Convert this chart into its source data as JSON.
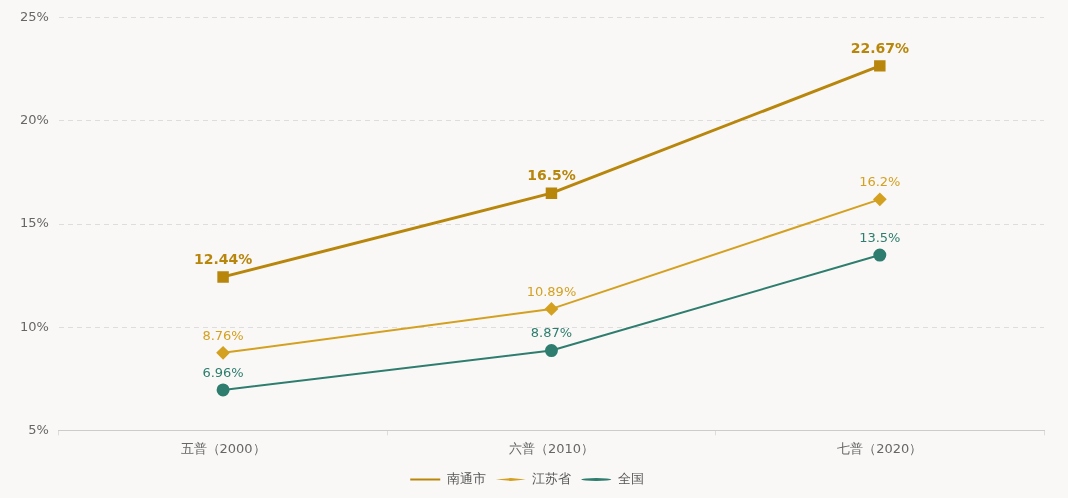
{
  "chart_data": {
    "type": "line",
    "categories": [
      "五普（2000）",
      "六普（2010）",
      "七普（2020）"
    ],
    "series": [
      {
        "name": "南通市",
        "color": "#b8860b",
        "marker": "square",
        "values": [
          12.44,
          16.5,
          22.67
        ],
        "value_labels": [
          "12.44%",
          "16.5%",
          "22.67%"
        ]
      },
      {
        "name": "江苏省",
        "color": "#d4a020",
        "marker": "diamond",
        "values": [
          8.76,
          10.89,
          16.2
        ],
        "value_labels": [
          "8.76%",
          "10.89%",
          "16.2%"
        ]
      },
      {
        "name": "全国",
        "color": "#2e7d6e",
        "marker": "circle",
        "values": [
          6.96,
          8.87,
          13.5
        ],
        "value_labels": [
          "6.96%",
          "8.87%",
          "13.5%"
        ]
      }
    ],
    "ylim": [
      5,
      25
    ],
    "yticks": [
      {
        "value": 5,
        "label": "5%"
      },
      {
        "value": 10,
        "label": "10%"
      },
      {
        "value": 15,
        "label": "15%"
      },
      {
        "value": 20,
        "label": "20%"
      },
      {
        "value": 25,
        "label": "25%"
      }
    ],
    "grid": "y",
    "legend": "bottom",
    "line_style": "solid"
  }
}
